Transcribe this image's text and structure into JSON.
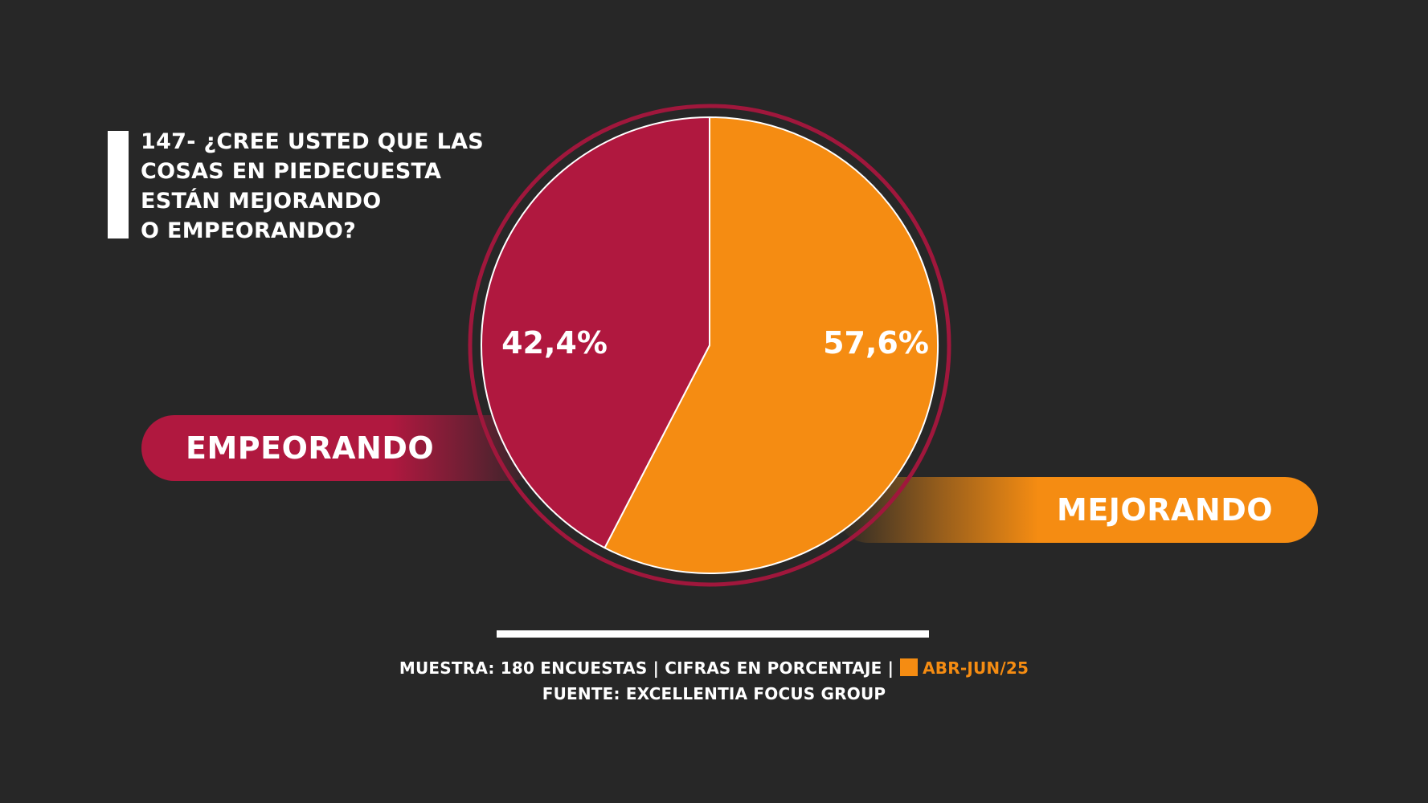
{
  "title": {
    "lines": [
      "147- ¿CREE USTED QUE LAS",
      "COSAS EN PIEDECUESTA",
      "ESTÁN MEJORANDO",
      "O EMPEORANDO?"
    ]
  },
  "chart_data": {
    "type": "pie",
    "categories": [
      "EMPEORANDO",
      "MEJORANDO"
    ],
    "values": [
      42.4,
      57.6
    ],
    "value_labels": [
      "42,4%",
      "57,6%"
    ],
    "colors": [
      "#b0183f",
      "#f58c12"
    ],
    "ring_color": "#a0173c",
    "title": "147- ¿CREE USTED QUE LAS COSAS EN PIEDECUESTA ESTÁN MEJORANDO O EMPEORANDO?"
  },
  "labels": {
    "empeorando": "EMPEORANDO",
    "mejorando": "MEJORANDO"
  },
  "footer": {
    "sample_text": "MUESTRA: 180 ENCUESTAS | CIFRAS EN PORCENTAJE |",
    "period": "ABR-JUN/25",
    "source": "FUENTE: EXCELLENTIA FOCUS GROUP"
  },
  "colors": {
    "background": "#272727",
    "empeorando": "#b0183f",
    "mejorando": "#f58c12",
    "text": "#ffffff"
  }
}
